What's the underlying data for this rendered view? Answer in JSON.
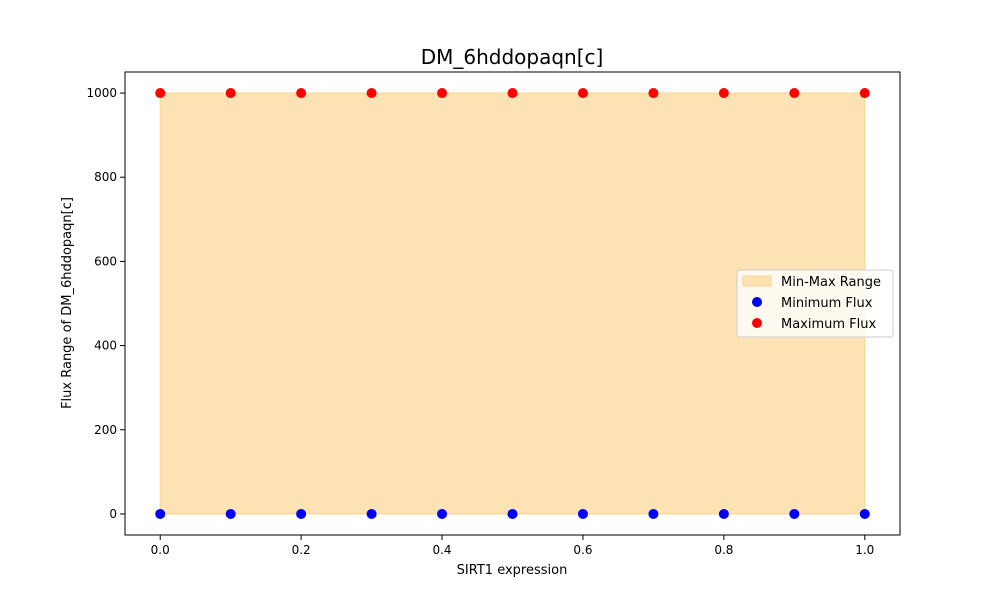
{
  "chart_data": {
    "type": "scatter",
    "title": "DM_6hddopaqn[c]",
    "xlabel": "SIRT1 expression",
    "ylabel": "Flux Range of DM_6hddopaqn[c]",
    "xlim": [
      -0.05,
      1.05
    ],
    "ylim": [
      -50,
      1050
    ],
    "xticks": [
      0.0,
      0.2,
      0.4,
      0.6,
      0.8,
      1.0
    ],
    "xtick_labels": [
      "0.0",
      "0.2",
      "0.4",
      "0.6",
      "0.8",
      "1.0"
    ],
    "yticks": [
      0,
      200,
      400,
      600,
      800,
      1000
    ],
    "ytick_labels": [
      "0",
      "200",
      "400",
      "600",
      "800",
      "1000"
    ],
    "grid": false,
    "legend_position": "center-right",
    "x": [
      0.0,
      0.1,
      0.2,
      0.3,
      0.4,
      0.5,
      0.6,
      0.7,
      0.8,
      0.9,
      1.0
    ],
    "series": [
      {
        "name": "Min-Max Range",
        "kind": "fill_between",
        "color": "#fde3b4",
        "edge_color": "#f8d391",
        "lower": [
          0,
          0,
          0,
          0,
          0,
          0,
          0,
          0,
          0,
          0,
          0
        ],
        "upper": [
          1000,
          1000,
          1000,
          1000,
          1000,
          1000,
          1000,
          1000,
          1000,
          1000,
          1000
        ]
      },
      {
        "name": "Minimum Flux",
        "kind": "scatter",
        "color": "#0000ff",
        "values": [
          0,
          0,
          0,
          0,
          0,
          0,
          0,
          0,
          0,
          0,
          0
        ]
      },
      {
        "name": "Maximum Flux",
        "kind": "scatter",
        "color": "#ff0000",
        "values": [
          1000,
          1000,
          1000,
          1000,
          1000,
          1000,
          1000,
          1000,
          1000,
          1000,
          1000
        ]
      }
    ]
  }
}
